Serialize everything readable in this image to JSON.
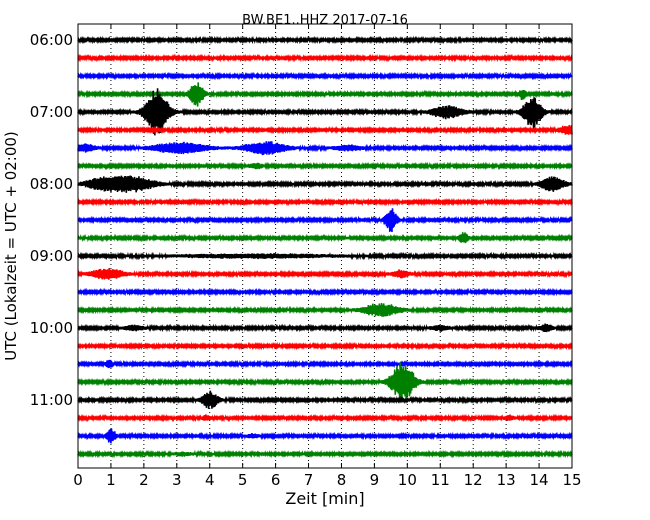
{
  "chart_data": {
    "type": "line",
    "title": "BW.BE1..HHZ 2017-07-16",
    "xlabel": "Zeit  [min]",
    "ylabel": "UTC (Lokalzeit = UTC + 02:00)",
    "xlim": [
      0,
      15
    ],
    "x_ticks": [
      "0",
      "1",
      "2",
      "3",
      "4",
      "5",
      "6",
      "7",
      "8",
      "9",
      "10",
      "11",
      "12",
      "13",
      "14",
      "15"
    ],
    "y_tick_labels": [
      "06:00",
      "07:00",
      "08:00",
      "09:00",
      "10:00",
      "11:00"
    ],
    "grid": "vertical dotted at each minute",
    "trace_colors": [
      "#000000",
      "#ff0000",
      "#0000ff",
      "#008000"
    ],
    "noise_amplitude": 0.045,
    "traces": [
      {
        "start": "06:00",
        "events": []
      },
      {
        "start": "06:15",
        "events": []
      },
      {
        "start": "06:30",
        "events": []
      },
      {
        "start": "06:45",
        "events": [
          {
            "t": 3.6,
            "amp": 0.7,
            "dur": 0.3
          },
          {
            "t": 13.5,
            "amp": 0.3,
            "dur": 0.15
          }
        ]
      },
      {
        "start": "07:00",
        "events": [
          {
            "t": 2.4,
            "amp": 1.3,
            "dur": 0.5
          },
          {
            "t": 11.2,
            "amp": 0.35,
            "dur": 0.7
          },
          {
            "t": 13.8,
            "amp": 0.9,
            "dur": 0.4
          }
        ]
      },
      {
        "start": "07:15",
        "events": [
          {
            "t": 14.9,
            "amp": 0.25,
            "dur": 0.4
          }
        ]
      },
      {
        "start": "07:30",
        "events": [
          {
            "t": 0.2,
            "amp": 0.2,
            "dur": 0.5
          },
          {
            "t": 3.1,
            "amp": 0.3,
            "dur": 1.2
          },
          {
            "t": 5.7,
            "amp": 0.35,
            "dur": 0.9
          },
          {
            "t": 8.2,
            "amp": 0.15,
            "dur": 0.6
          }
        ]
      },
      {
        "start": "07:45",
        "events": [
          {
            "t": 5.4,
            "amp": 0.15,
            "dur": 0.3
          }
        ]
      },
      {
        "start": "08:00",
        "events": [
          {
            "t": 0.7,
            "amp": 0.3,
            "dur": 0.7
          },
          {
            "t": 1.6,
            "amp": 0.45,
            "dur": 1.0
          },
          {
            "t": 14.4,
            "amp": 0.45,
            "dur": 0.5
          }
        ]
      },
      {
        "start": "08:15",
        "events": []
      },
      {
        "start": "08:30",
        "events": [
          {
            "t": 9.5,
            "amp": 0.65,
            "dur": 0.25
          }
        ]
      },
      {
        "start": "08:45",
        "events": [
          {
            "t": 11.7,
            "amp": 0.3,
            "dur": 0.2
          }
        ]
      },
      {
        "start": "09:00",
        "events": [
          {
            "t": 5.4,
            "amp": 0.1,
            "dur": 3.5
          }
        ]
      },
      {
        "start": "09:15",
        "events": [
          {
            "t": 0.9,
            "amp": 0.3,
            "dur": 0.7
          },
          {
            "t": 9.8,
            "amp": 0.2,
            "dur": 0.4
          }
        ]
      },
      {
        "start": "09:30",
        "events": []
      },
      {
        "start": "09:45",
        "events": [
          {
            "t": 9.2,
            "amp": 0.35,
            "dur": 0.8
          }
        ]
      },
      {
        "start": "10:00",
        "events": [
          {
            "t": 1.7,
            "amp": 0.15,
            "dur": 0.4
          },
          {
            "t": 11.0,
            "amp": 0.15,
            "dur": 0.4
          },
          {
            "t": 14.2,
            "amp": 0.2,
            "dur": 0.3
          }
        ]
      },
      {
        "start": "10:15",
        "events": []
      },
      {
        "start": "10:30",
        "events": [
          {
            "t": 0.95,
            "amp": 0.25,
            "dur": 0.15
          }
        ]
      },
      {
        "start": "10:45",
        "events": [
          {
            "t": 9.85,
            "amp": 1.1,
            "dur": 0.5
          }
        ]
      },
      {
        "start": "11:00",
        "events": [
          {
            "t": 4.0,
            "amp": 0.5,
            "dur": 0.35
          }
        ]
      },
      {
        "start": "11:15",
        "events": [
          {
            "t": 3.9,
            "amp": 0.15,
            "dur": 0.2
          },
          {
            "t": 13.1,
            "amp": 0.15,
            "dur": 0.2
          }
        ]
      },
      {
        "start": "11:30",
        "events": [
          {
            "t": 1.0,
            "amp": 0.4,
            "dur": 0.2
          },
          {
            "t": 5.3,
            "amp": 0.1,
            "dur": 0.3
          }
        ]
      },
      {
        "start": "11:45",
        "events": [
          {
            "t": 3.2,
            "amp": 0.1,
            "dur": 0.4
          }
        ]
      }
    ]
  }
}
